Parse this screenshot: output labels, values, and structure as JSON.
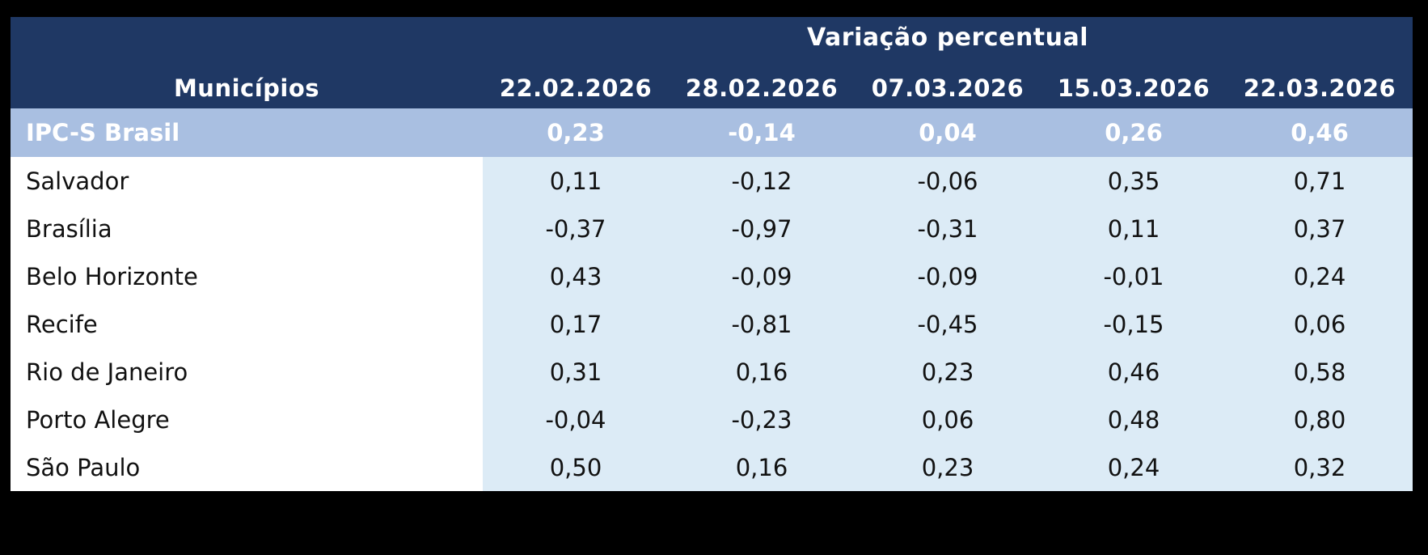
{
  "table": {
    "title": "Variação percentual",
    "municipios_header": "Municípios",
    "date_headers": [
      "22.02.2026",
      "28.02.2026",
      "07.03.2026",
      "15.03.2026",
      "22.03.2026"
    ],
    "highlight_row": {
      "label": "IPC-S Brasil",
      "values": [
        "0,23",
        "-0,14",
        "0,04",
        "0,26",
        "0,46"
      ]
    },
    "rows": [
      {
        "label": "Salvador",
        "values": [
          "0,11",
          "-0,12",
          "-0,06",
          "0,35",
          "0,71"
        ]
      },
      {
        "label": "Brasília",
        "values": [
          "-0,37",
          "-0,97",
          "-0,31",
          "0,11",
          "0,37"
        ]
      },
      {
        "label": "Belo Horizonte",
        "values": [
          "0,43",
          "-0,09",
          "-0,09",
          "-0,01",
          "0,24"
        ]
      },
      {
        "label": "Recife",
        "values": [
          "0,17",
          "-0,81",
          "-0,45",
          "-0,15",
          "0,06"
        ]
      },
      {
        "label": "Rio de Janeiro",
        "values": [
          "0,31",
          "0,16",
          "0,23",
          "0,46",
          "0,58"
        ]
      },
      {
        "label": "Porto Alegre",
        "values": [
          "-0,04",
          "-0,23",
          "0,06",
          "0,48",
          "0,80"
        ]
      },
      {
        "label": "São Paulo",
        "values": [
          "0,50",
          "0,16",
          "0,23",
          "0,24",
          "0,32"
        ]
      }
    ],
    "colors": {
      "page_background": "#000000",
      "header_bg": "#1f3864",
      "highlight_bg": "#a9bfe1",
      "data_bg": "#dcebf6",
      "name_bg": "#ffffff",
      "header_text": "#ffffff",
      "data_text": "#111111"
    }
  },
  "chart_data": {
    "type": "table",
    "title": "Variação percentual",
    "categories": [
      "22.02.2026",
      "28.02.2026",
      "07.03.2026",
      "15.03.2026",
      "22.03.2026"
    ],
    "row_header_label": "Municípios",
    "series": [
      {
        "name": "IPC-S Brasil",
        "values": [
          0.23,
          -0.14,
          0.04,
          0.26,
          0.46
        ]
      },
      {
        "name": "Salvador",
        "values": [
          0.11,
          -0.12,
          -0.06,
          0.35,
          0.71
        ]
      },
      {
        "name": "Brasília",
        "values": [
          -0.37,
          -0.97,
          -0.31,
          0.11,
          0.37
        ]
      },
      {
        "name": "Belo Horizonte",
        "values": [
          0.43,
          -0.09,
          -0.09,
          -0.01,
          0.24
        ]
      },
      {
        "name": "Recife",
        "values": [
          0.17,
          -0.81,
          -0.45,
          -0.15,
          0.06
        ]
      },
      {
        "name": "Rio de Janeiro",
        "values": [
          0.31,
          0.16,
          0.23,
          0.46,
          0.58
        ]
      },
      {
        "name": "Porto Alegre",
        "values": [
          -0.04,
          -0.23,
          0.06,
          0.48,
          0.8
        ]
      },
      {
        "name": "São Paulo",
        "values": [
          0.5,
          0.16,
          0.23,
          0.24,
          0.32
        ]
      }
    ]
  }
}
